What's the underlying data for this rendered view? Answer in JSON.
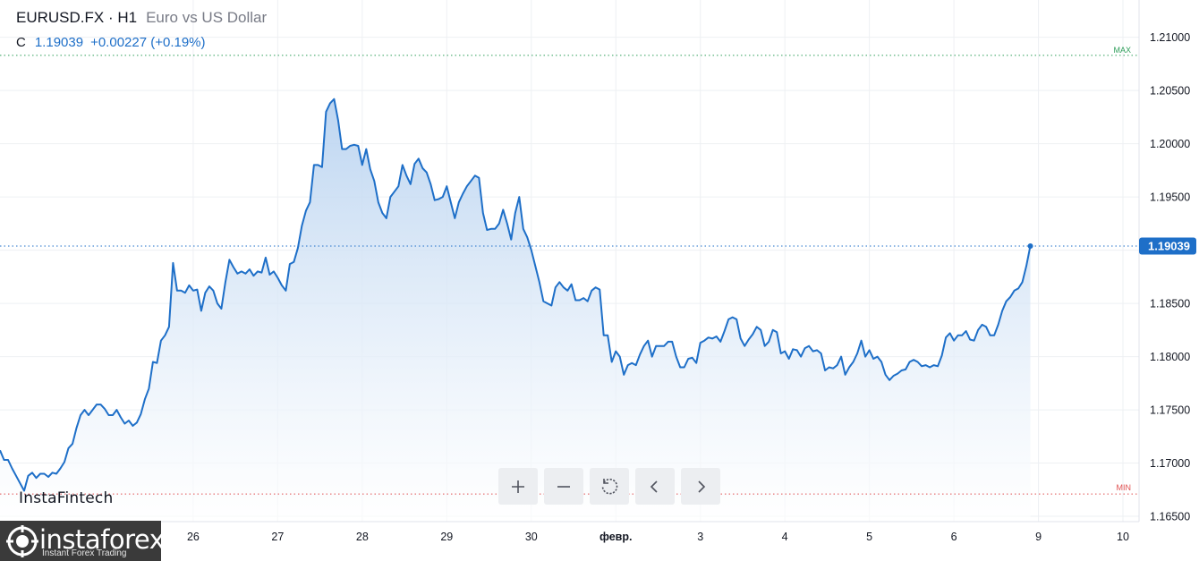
{
  "header": {
    "symbol": "EURUSD.FX · H1",
    "description": "Euro vs US Dollar",
    "ohlc_label": "C",
    "close_value": "1.19039",
    "change": "+0.00227 (+0.19%)"
  },
  "controls": [
    {
      "name": "zoom-in-button",
      "icon": "plus-icon"
    },
    {
      "name": "zoom-out-button",
      "icon": "minus-icon"
    },
    {
      "name": "reset-button",
      "icon": "reset-icon"
    },
    {
      "name": "scroll-left-button",
      "icon": "chevron-left-icon"
    },
    {
      "name": "scroll-right-button",
      "icon": "chevron-right-icon"
    }
  ],
  "branding": {
    "instafintech": "InstaFintech",
    "instaforex": "instaforex",
    "instaforex_tagline": "Instant Forex Trading"
  },
  "colors": {
    "line": "#1e6fc8",
    "fill_top": "#b9d3f0",
    "price_badge": "#1e6fc8",
    "max_label": "#2e9e5a",
    "min_label": "#e05050",
    "grid": "#eef0f3"
  },
  "chart_data": {
    "type": "area",
    "series_name": "EURUSD.FX H1 close",
    "x_ticks": [
      "26",
      "27",
      "28",
      "29",
      "30",
      "февр.",
      "3",
      "4",
      "5",
      "6",
      "9",
      "10"
    ],
    "y_ticks": [
      "1.21000",
      "1.20500",
      "1.20000",
      "1.19500",
      "1.19000",
      "1.18500",
      "1.18000",
      "1.17500",
      "1.17000",
      "1.16500"
    ],
    "ylim": [
      1.1645,
      1.2135
    ],
    "last_price": 1.19039,
    "last_price_label": "1.19039",
    "max_label": "MAX",
    "max_value": 1.2083,
    "min_label": "MIN",
    "min_value": 1.1671,
    "x_range": [
      0,
      283
    ],
    "x_tick_positions": [
      48,
      69,
      90,
      111,
      132,
      153,
      174,
      195,
      216,
      237,
      258,
      279
    ],
    "values": [
      1.1712,
      1.1703,
      1.1703,
      1.1695,
      1.1688,
      1.1681,
      1.1674,
      1.1688,
      1.1691,
      1.1686,
      1.169,
      1.169,
      1.1687,
      1.1691,
      1.169,
      1.1695,
      1.1701,
      1.1714,
      1.1718,
      1.1733,
      1.1745,
      1.175,
      1.1745,
      1.175,
      1.1755,
      1.1755,
      1.1751,
      1.1745,
      1.1745,
      1.175,
      1.1743,
      1.1737,
      1.174,
      1.1735,
      1.1738,
      1.1746,
      1.176,
      1.177,
      1.1795,
      1.1794,
      1.1815,
      1.182,
      1.1828,
      1.1888,
      1.1862,
      1.1862,
      1.186,
      1.1867,
      1.1862,
      1.1863,
      1.1843,
      1.186,
      1.1866,
      1.1862,
      1.185,
      1.1845,
      1.187,
      1.1891,
      1.1884,
      1.1878,
      1.188,
      1.1878,
      1.1882,
      1.1876,
      1.188,
      1.1879,
      1.1893,
      1.1877,
      1.188,
      1.1874,
      1.1867,
      1.1862,
      1.1887,
      1.1889,
      1.1902,
      1.1923,
      1.1937,
      1.1945,
      1.198,
      1.198,
      1.1978,
      1.203,
      1.2038,
      1.2042,
      1.2022,
      1.1995,
      1.1995,
      1.1998,
      1.1999,
      1.1998,
      1.198,
      1.1995,
      1.1976,
      1.1965,
      1.1945,
      1.1935,
      1.193,
      1.195,
      1.1955,
      1.196,
      1.198,
      1.197,
      1.1962,
      1.1981,
      1.1986,
      1.1977,
      1.1973,
      1.1962,
      1.1947,
      1.1948,
      1.195,
      1.196,
      1.1945,
      1.193,
      1.1945,
      1.1953,
      1.196,
      1.1965,
      1.197,
      1.1968,
      1.1935,
      1.1919,
      1.192,
      1.192,
      1.1925,
      1.1938,
      1.1925,
      1.191,
      1.1935,
      1.195,
      1.192,
      1.1912,
      1.19,
      1.1885,
      1.187,
      1.1852,
      1.185,
      1.1848,
      1.1865,
      1.187,
      1.1865,
      1.1862,
      1.1868,
      1.1853,
      1.1853,
      1.1855,
      1.1852,
      1.1862,
      1.1865,
      1.1863,
      1.182,
      1.182,
      1.1795,
      1.1805,
      1.18,
      1.1783,
      1.1792,
      1.1794,
      1.1792,
      1.1802,
      1.181,
      1.1815,
      1.18,
      1.181,
      1.181,
      1.181,
      1.1814,
      1.1814,
      1.18,
      1.179,
      1.179,
      1.1798,
      1.1799,
      1.1794,
      1.1813,
      1.1815,
      1.1818,
      1.1817,
      1.1819,
      1.1814,
      1.1824,
      1.1835,
      1.1837,
      1.1835,
      1.1817,
      1.181,
      1.1816,
      1.1821,
      1.1828,
      1.1825,
      1.181,
      1.1814,
      1.1825,
      1.1823,
      1.1803,
      1.1805,
      1.1798,
      1.1807,
      1.1806,
      1.18,
      1.1808,
      1.181,
      1.1805,
      1.1806,
      1.1803,
      1.1787,
      1.179,
      1.1789,
      1.1792,
      1.18,
      1.1783,
      1.179,
      1.1795,
      1.1803,
      1.1815,
      1.18,
      1.1806,
      1.1798,
      1.18,
      1.1795,
      1.1783,
      1.1778,
      1.1782,
      1.1784,
      1.1787,
      1.1788,
      1.1795,
      1.1797,
      1.1795,
      1.1791,
      1.1792,
      1.179,
      1.1792,
      1.1791,
      1.1801,
      1.1818,
      1.1822,
      1.1815,
      1.182,
      1.182,
      1.1824,
      1.1816,
      1.1815,
      1.1825,
      1.183,
      1.1828,
      1.182,
      1.182,
      1.183,
      1.1843,
      1.1852,
      1.1856,
      1.1862,
      1.1864,
      1.187,
      1.1885,
      1.1904
    ]
  }
}
